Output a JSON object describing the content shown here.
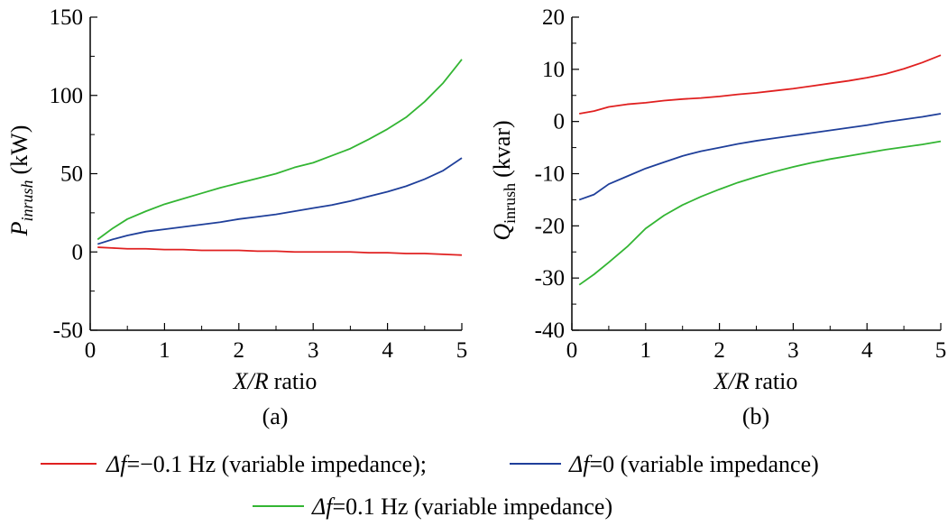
{
  "chart_data": [
    {
      "type": "line",
      "panel_label": "(a)",
      "ylabel": {
        "symbol": "P",
        "subscript": "inrush",
        "unit": "(kW)"
      },
      "xlabel": {
        "italic": "X/R",
        "rest": "ratio"
      },
      "xlim": [
        0,
        5
      ],
      "ylim": [
        -50,
        150
      ],
      "xticks": [
        "0",
        "1",
        "2",
        "3",
        "4",
        "5"
      ],
      "yticks": [
        "-50",
        "0",
        "50",
        "100",
        "150"
      ],
      "x": [
        0.1,
        0.3,
        0.5,
        0.75,
        1.0,
        1.25,
        1.5,
        1.75,
        2.0,
        2.25,
        2.5,
        2.75,
        3.0,
        3.25,
        3.5,
        3.75,
        4.0,
        4.25,
        4.5,
        4.75,
        5.0
      ],
      "series": [
        {
          "key": "neg",
          "color": "#e02020",
          "values": [
            3,
            2.5,
            2,
            2,
            1.5,
            1.5,
            1,
            1,
            1,
            0.5,
            0.5,
            0,
            0,
            0,
            0,
            -0.5,
            -0.5,
            -1,
            -1,
            -1.5,
            -2
          ]
        },
        {
          "key": "zero",
          "color": "#1f3f9a",
          "values": [
            5,
            8,
            10.5,
            13,
            14.5,
            16,
            17.5,
            19,
            21,
            22.5,
            24,
            26,
            28,
            30,
            32.5,
            35.5,
            38.5,
            42,
            46.5,
            52,
            60
          ]
        },
        {
          "key": "pos",
          "color": "#33b533",
          "values": [
            8,
            15,
            21,
            26,
            30.5,
            34,
            37.5,
            41,
            44,
            47,
            50,
            54,
            57,
            61.5,
            66,
            72,
            78.5,
            86,
            96,
            108,
            123
          ]
        }
      ]
    },
    {
      "type": "line",
      "panel_label": "(b)",
      "ylabel": {
        "symbol": "Q",
        "subscript": "inrush",
        "unit": "(kvar)"
      },
      "xlabel": {
        "italic": "X/R",
        "rest": "ratio"
      },
      "xlim": [
        0,
        5
      ],
      "ylim": [
        -40,
        20
      ],
      "xticks": [
        "0",
        "1",
        "2",
        "3",
        "4",
        "5"
      ],
      "yticks": [
        "-40",
        "-30",
        "-20",
        "-10",
        "0",
        "10",
        "20"
      ],
      "x": [
        0.1,
        0.3,
        0.5,
        0.75,
        1.0,
        1.25,
        1.5,
        1.75,
        2.0,
        2.25,
        2.5,
        2.75,
        3.0,
        3.25,
        3.5,
        3.75,
        4.0,
        4.25,
        4.5,
        4.75,
        5.0
      ],
      "series": [
        {
          "key": "neg",
          "color": "#e02020",
          "values": [
            1.5,
            2,
            2.8,
            3.3,
            3.6,
            4,
            4.3,
            4.5,
            4.8,
            5.2,
            5.5,
            5.9,
            6.3,
            6.8,
            7.3,
            7.8,
            8.4,
            9.1,
            10.1,
            11.3,
            12.7
          ]
        },
        {
          "key": "zero",
          "color": "#1f3f9a",
          "values": [
            -15,
            -14,
            -12,
            -10.5,
            -9,
            -7.8,
            -6.6,
            -5.7,
            -5,
            -4.3,
            -3.7,
            -3.2,
            -2.7,
            -2.2,
            -1.7,
            -1.2,
            -0.7,
            -0.1,
            0.4,
            0.9,
            1.5
          ]
        },
        {
          "key": "pos",
          "color": "#33b533",
          "values": [
            -31.3,
            -29.3,
            -27,
            -24,
            -20.5,
            -18,
            -16,
            -14.4,
            -13,
            -11.7,
            -10.6,
            -9.6,
            -8.7,
            -7.9,
            -7.2,
            -6.6,
            -6,
            -5.4,
            -4.9,
            -4.4,
            -3.8
          ]
        }
      ]
    }
  ],
  "legend": {
    "items": [
      {
        "key": "neg",
        "color": "#e02020",
        "symbol": "Δf",
        "text": "=−0.1 Hz (variable impedance);"
      },
      {
        "key": "zero",
        "color": "#1f3f9a",
        "symbol": "Δf",
        "text": "=0 (variable impedance)"
      },
      {
        "key": "pos",
        "color": "#33b533",
        "symbol": "Δf",
        "text": "=0.1 Hz (variable impedance)"
      }
    ]
  }
}
